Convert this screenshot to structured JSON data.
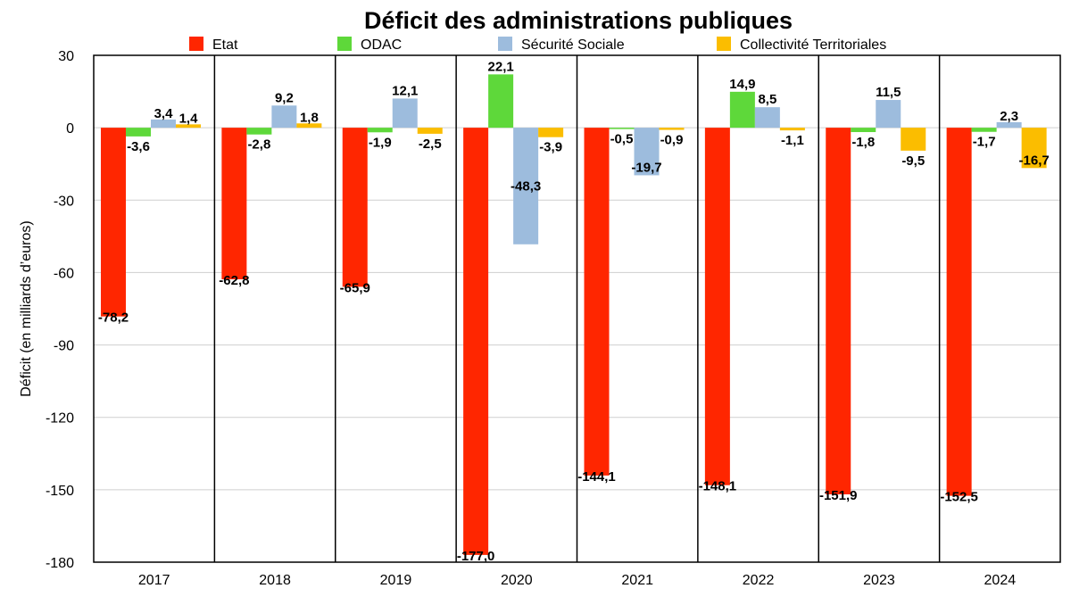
{
  "chart_data": {
    "type": "bar",
    "title": "Déficit des administrations publiques",
    "xlabel": "",
    "ylabel": "Déficit (en milliards d’euros)",
    "ylim": [
      -180,
      30
    ],
    "yticks": [
      30,
      0,
      -30,
      -60,
      -90,
      -120,
      -150,
      -180
    ],
    "grid": true,
    "legend_position": "top",
    "categories": [
      "2017",
      "2018",
      "2019",
      "2020",
      "2021",
      "2022",
      "2023",
      "2024"
    ],
    "series": [
      {
        "name": "Etat",
        "color": "#ff2600",
        "values": [
          -78.2,
          -62.8,
          -65.9,
          -177.0,
          -144.1,
          -148.1,
          -151.9,
          -152.5
        ],
        "labels": [
          "-78,2",
          "-62,8",
          "-65,9",
          "-177,0",
          "-144,1",
          "-148,1",
          "-151,9",
          "-152,5"
        ]
      },
      {
        "name": "ODAC",
        "color": "#5ed83a",
        "values": [
          -3.6,
          -2.8,
          -1.9,
          22.1,
          -0.5,
          14.9,
          -1.8,
          -1.7
        ],
        "labels": [
          "-3,6",
          "-2,8",
          "-1,9",
          "22,1",
          "-0,5",
          "14,9",
          "-1,8",
          "-1,7"
        ]
      },
      {
        "name": "Sécurité Sociale",
        "color": "#9dbcdd",
        "values": [
          3.4,
          9.2,
          12.1,
          -48.3,
          -19.7,
          8.5,
          11.5,
          2.3
        ],
        "labels": [
          "3,4",
          "9,2",
          "12,1",
          "-48,3",
          "-19,7",
          "8,5",
          "11,5",
          "2,3"
        ]
      },
      {
        "name": "Collectivité Territoriales",
        "color": "#fbbd00",
        "values": [
          1.4,
          1.8,
          -2.5,
          -3.9,
          -0.9,
          -1.1,
          -9.5,
          -16.7
        ],
        "labels": [
          "1,4",
          "1,8",
          "-2,5",
          "-3,9",
          "-0,9",
          "-1,1",
          "-9,5",
          "-16,7"
        ]
      }
    ]
  }
}
